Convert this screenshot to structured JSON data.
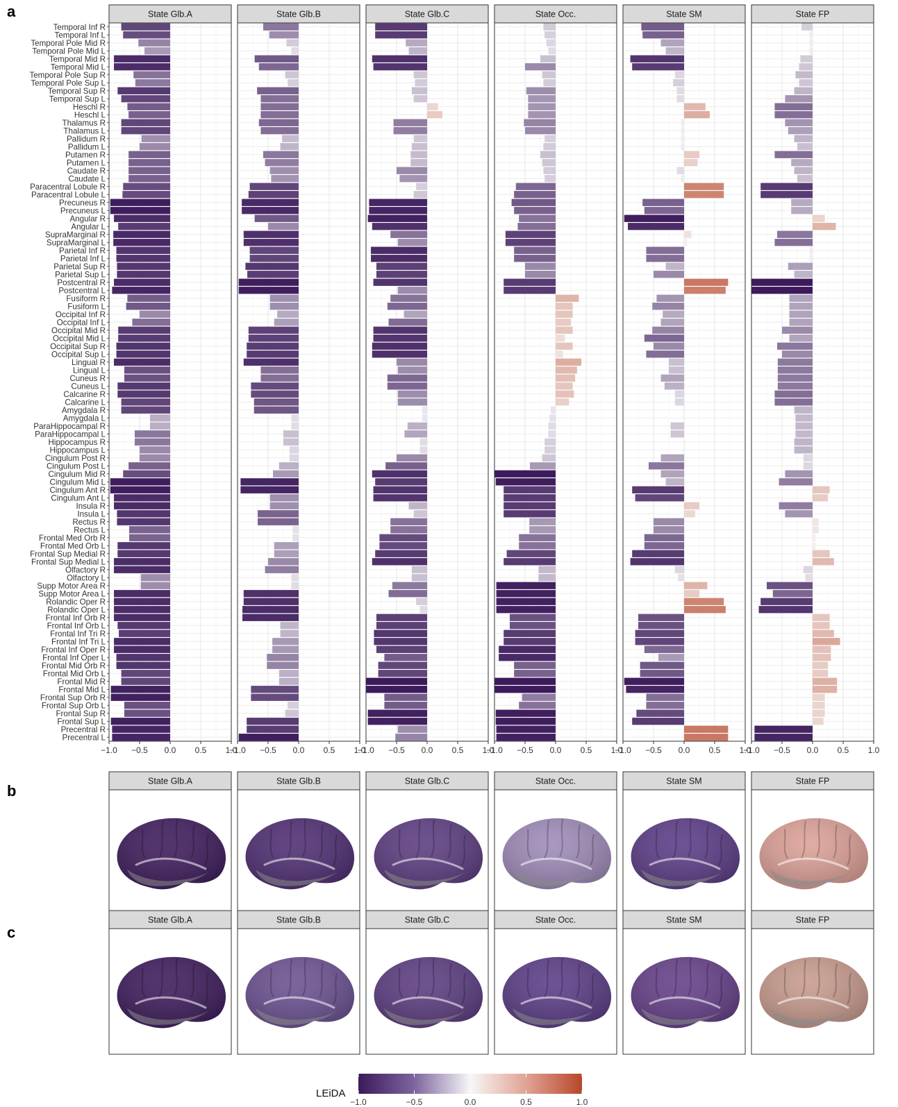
{
  "panel_labels": {
    "a": "a",
    "b": "b",
    "c": "c"
  },
  "brain_panels": {
    "b": {
      "colors": [
        "#3c1a5b",
        "#4e2c72",
        "#5b3b80",
        "#9e8ab8",
        "#5a3b86",
        "#dca096"
      ]
    },
    "c": {
      "colors": [
        "#3c1a5b",
        "#6a5091",
        "#5b3b80",
        "#5a3b86",
        "#643e88",
        "#c89a8d"
      ]
    }
  },
  "legend": {
    "title": "LEiDA",
    "ticks": [
      "−1.0",
      "−0.5",
      "0.0",
      "0.5",
      "1.0"
    ],
    "tick_values": [
      -1,
      -0.5,
      0,
      0.5,
      1
    ],
    "colors": {
      "low": "#3c1a5b",
      "mid": "#f7f7f7",
      "high": "#b7472a"
    }
  },
  "chart_data": {
    "type": "bar",
    "orientation": "horizontal",
    "xlim": [
      -1,
      1
    ],
    "x_ticks": [
      "−1.0",
      "−0.5",
      "0.0",
      "0.5",
      "1.0"
    ],
    "x_tick_values": [
      -1,
      -0.5,
      0,
      0.5,
      1
    ],
    "grid": true,
    "categories": [
      "Temporal Inf R",
      "Temporal Inf L",
      "Temporal Pole Mid R",
      "Temporal Pole Mid L",
      "Temporal Mid R",
      "Temporal Mid L",
      "Temporal Pole Sup R",
      "Temporal Pole Sup L",
      "Temporal Sup R",
      "Temporal Sup L",
      "Heschl R",
      "Heschl L",
      "Thalamus R",
      "Thalamus L",
      "Pallidum R",
      "Pallidum L",
      "Putamen R",
      "Putamen L",
      "Caudate R",
      "Caudate L",
      "Paracentral Lobule R",
      "Paracentral Lobule L",
      "Precuneus R",
      "Precuneus L",
      "Angular R",
      "Angular L",
      "SupraMarginal R",
      "SupraMarginal L",
      "Parietal Inf R",
      "Parietal Inf L",
      "Parietal Sup R",
      "Parietal Sup L",
      "Postcentral R",
      "Postcentral L",
      "Fusiform R",
      "Fusiform L",
      "Occipital Inf R",
      "Occipital Inf L",
      "Occipital Mid R",
      "Occipital Mid L",
      "Occipital Sup R",
      "Occipital Sup L",
      "Lingual R",
      "Lingual L",
      "Cuneus R",
      "Cuneus L",
      "Calcarine R",
      "Calcarine L",
      "Amygdala R",
      "Amygdala L",
      "ParaHippocampal R",
      "ParaHippocampal L",
      "Hippocampus R",
      "Hippocampus L",
      "Cingulum Post R",
      "Cingulum Post L",
      "Cingulum Mid R",
      "Cingulum Mid L",
      "Cingulum Ant R",
      "Cingulum Ant L",
      "Insula R",
      "Insula L",
      "Rectus R",
      "Rectus L",
      "Frontal Med Orb R",
      "Frontal Med Orb L",
      "Frontal Sup Medial R",
      "Frontal Sup Medial L",
      "Olfactory R",
      "Olfactory L",
      "Supp Motor Area R",
      "Supp Motor Area L",
      "Rolandic Oper R",
      "Rolandic Oper L",
      "Frontal Inf Orb R",
      "Frontal Inf Orb L",
      "Frontal Inf Tri R",
      "Frontal Inf Tri L",
      "Frontal Inf Oper R",
      "Frontal Inf Oper L",
      "Frontal Mid Orb R",
      "Frontal Mid Orb L",
      "Frontal Mid R",
      "Frontal Mid L",
      "Frontal Sup Orb R",
      "Frontal Sup Orb L",
      "Frontal Sup R",
      "Frontal Sup L",
      "Precentral R",
      "Precentral L"
    ],
    "series": [
      {
        "name": "State Glb.A",
        "values": [
          -0.8,
          -0.77,
          -0.52,
          -0.42,
          -0.92,
          -0.92,
          -0.6,
          -0.57,
          -0.86,
          -0.8,
          -0.7,
          -0.68,
          -0.8,
          -0.8,
          -0.47,
          -0.5,
          -0.68,
          -0.68,
          -0.68,
          -0.68,
          -0.77,
          -0.78,
          -0.98,
          -0.98,
          -0.92,
          -0.85,
          -0.93,
          -0.93,
          -0.88,
          -0.88,
          -0.87,
          -0.87,
          -0.92,
          -0.95,
          -0.7,
          -0.72,
          -0.5,
          -0.62,
          -0.85,
          -0.85,
          -0.88,
          -0.88,
          -0.92,
          -0.75,
          -0.75,
          -0.86,
          -0.86,
          -0.8,
          -0.8,
          -0.33,
          -0.33,
          -0.58,
          -0.58,
          -0.5,
          -0.5,
          -0.68,
          -0.77,
          -0.98,
          -0.98,
          -0.92,
          -0.92,
          -0.87,
          -0.87,
          -0.67,
          -0.67,
          -0.86,
          -0.86,
          -0.92,
          -0.92,
          -0.48,
          -0.48,
          -0.92,
          -0.92,
          -0.92,
          -0.92,
          -0.86,
          -0.84,
          -0.92,
          -0.92,
          -0.88,
          -0.88,
          -0.8,
          -0.8,
          -0.97,
          -0.97,
          -0.75,
          -0.75,
          -0.97,
          -0.95,
          -0.95
        ]
      },
      {
        "name": "State Glb.B",
        "values": [
          -0.58,
          -0.48,
          -0.2,
          -0.12,
          -0.72,
          -0.65,
          -0.22,
          -0.18,
          -0.68,
          -0.62,
          -0.62,
          -0.62,
          -0.65,
          -0.62,
          -0.27,
          -0.3,
          -0.58,
          -0.55,
          -0.47,
          -0.45,
          -0.8,
          -0.82,
          -0.93,
          -0.93,
          -0.72,
          -0.5,
          -0.9,
          -0.9,
          -0.8,
          -0.8,
          -0.87,
          -0.84,
          -0.98,
          -0.98,
          -0.47,
          -0.47,
          -0.35,
          -0.4,
          -0.82,
          -0.82,
          -0.85,
          -0.85,
          -0.9,
          -0.62,
          -0.62,
          -0.78,
          -0.78,
          -0.73,
          -0.73,
          -0.12,
          -0.12,
          -0.25,
          -0.25,
          -0.15,
          -0.15,
          -0.32,
          -0.42,
          -0.95,
          -0.95,
          -0.47,
          -0.47,
          -0.67,
          -0.67,
          -0.1,
          -0.1,
          -0.4,
          -0.4,
          -0.5,
          -0.55,
          -0.12,
          -0.12,
          -0.9,
          -0.9,
          -0.92,
          -0.92,
          -0.3,
          -0.3,
          -0.43,
          -0.43,
          -0.52,
          -0.52,
          -0.32,
          -0.32,
          -0.78,
          -0.78,
          -0.18,
          -0.22,
          -0.85,
          -0.85,
          -0.98
        ]
      },
      {
        "name": "State Glb.C",
        "values": [
          -0.85,
          -0.85,
          -0.35,
          -0.3,
          -0.9,
          -0.88,
          -0.22,
          -0.2,
          -0.25,
          -0.22,
          0.18,
          0.25,
          -0.55,
          -0.55,
          -0.22,
          -0.25,
          -0.27,
          -0.27,
          -0.5,
          -0.45,
          -0.18,
          -0.22,
          -0.95,
          -0.95,
          -0.97,
          -0.9,
          -0.6,
          -0.48,
          -0.92,
          -0.92,
          -0.83,
          -0.83,
          -0.88,
          -0.48,
          -0.6,
          -0.65,
          -0.38,
          -0.63,
          -0.88,
          -0.88,
          -0.9,
          -0.9,
          -0.5,
          -0.48,
          -0.65,
          -0.65,
          -0.48,
          -0.48,
          -0.08,
          -0.08,
          -0.32,
          -0.37,
          -0.12,
          -0.12,
          -0.5,
          -0.68,
          -0.9,
          -0.85,
          -0.88,
          -0.88,
          -0.3,
          -0.22,
          -0.6,
          -0.6,
          -0.78,
          -0.78,
          -0.85,
          -0.9,
          -0.25,
          -0.25,
          -0.57,
          -0.63,
          -0.18,
          -0.12,
          -0.83,
          -0.83,
          -0.87,
          -0.87,
          -0.83,
          -0.7,
          -0.8,
          -0.8,
          -1.0,
          -1.0,
          -0.7,
          -0.7,
          -0.97,
          -0.97,
          -0.48,
          -0.52
        ]
      },
      {
        "name": "State Occ.",
        "values": [
          -0.2,
          -0.18,
          -0.15,
          -0.12,
          -0.25,
          -0.5,
          -0.22,
          -0.2,
          -0.48,
          -0.45,
          -0.45,
          -0.45,
          -0.52,
          -0.5,
          -0.18,
          -0.2,
          -0.25,
          -0.22,
          -0.2,
          -0.18,
          -0.65,
          -0.68,
          -0.72,
          -0.68,
          -0.6,
          -0.62,
          -0.82,
          -0.82,
          -0.68,
          -0.68,
          -0.5,
          -0.5,
          -0.85,
          -0.85,
          0.38,
          0.28,
          0.28,
          0.25,
          0.28,
          0.15,
          0.28,
          0.12,
          0.42,
          0.35,
          0.32,
          0.28,
          0.3,
          0.22,
          -0.08,
          -0.1,
          -0.12,
          -0.12,
          -0.18,
          -0.18,
          -0.22,
          -0.42,
          -1.0,
          -0.98,
          -0.85,
          -0.85,
          -0.85,
          -0.85,
          -0.43,
          -0.43,
          -0.6,
          -0.6,
          -0.8,
          -0.85,
          -0.28,
          -0.28,
          -0.97,
          -0.97,
          -0.97,
          -0.97,
          -0.75,
          -0.75,
          -0.85,
          -0.85,
          -0.93,
          -0.93,
          -0.68,
          -0.68,
          -1.0,
          -1.0,
          -0.55,
          -0.6,
          -0.98,
          -0.98,
          -0.97,
          -0.97
        ]
      },
      {
        "name": "State SM",
        "values": [
          -0.7,
          -0.68,
          -0.38,
          -0.3,
          -0.88,
          -0.85,
          -0.15,
          -0.18,
          -0.12,
          -0.12,
          0.35,
          0.42,
          -0.05,
          -0.05,
          -0.05,
          -0.05,
          0.25,
          0.22,
          -0.12,
          -0.05,
          0.65,
          0.65,
          -0.68,
          -0.65,
          -0.98,
          -0.92,
          0.12,
          0.05,
          -0.62,
          -0.62,
          -0.3,
          -0.5,
          0.72,
          0.68,
          -0.45,
          -0.52,
          -0.35,
          -0.38,
          -0.52,
          -0.65,
          -0.5,
          -0.62,
          -0.25,
          -0.25,
          -0.38,
          -0.32,
          -0.15,
          -0.15,
          0.02,
          -0.02,
          -0.22,
          -0.22,
          0.02,
          0.02,
          -0.38,
          -0.58,
          -0.38,
          -0.3,
          -0.85,
          -0.8,
          0.25,
          0.18,
          -0.5,
          -0.5,
          -0.65,
          -0.65,
          -0.85,
          -0.88,
          -0.15,
          -0.1,
          0.38,
          0.25,
          0.65,
          0.68,
          -0.75,
          -0.75,
          -0.8,
          -0.8,
          -0.65,
          -0.42,
          -0.72,
          -0.72,
          -0.98,
          -0.95,
          -0.62,
          -0.62,
          -0.78,
          -0.85,
          0.72,
          0.72
        ]
      },
      {
        "name": "State FP",
        "values": [
          -0.18,
          -0.05,
          -0.05,
          -0.05,
          -0.2,
          -0.22,
          -0.28,
          -0.22,
          -0.3,
          -0.45,
          -0.62,
          -0.62,
          -0.45,
          -0.4,
          -0.3,
          -0.25,
          -0.62,
          -0.35,
          -0.3,
          -0.25,
          -0.85,
          -0.85,
          -0.35,
          -0.35,
          0.2,
          0.38,
          -0.58,
          -0.62,
          -0.05,
          -0.05,
          -0.4,
          -0.3,
          -1.0,
          -1.0,
          -0.38,
          -0.38,
          -0.38,
          -0.38,
          -0.5,
          -0.38,
          -0.58,
          -0.5,
          -0.57,
          -0.57,
          -0.57,
          -0.57,
          -0.62,
          -0.62,
          -0.3,
          -0.28,
          -0.28,
          -0.28,
          -0.3,
          -0.3,
          -0.15,
          -0.15,
          -0.45,
          -0.55,
          0.28,
          0.25,
          -0.55,
          -0.45,
          0.1,
          0.1,
          0.05,
          0.05,
          0.28,
          0.35,
          -0.15,
          -0.12,
          -0.75,
          -0.65,
          -0.85,
          -0.88,
          0.28,
          0.28,
          0.35,
          0.45,
          0.3,
          0.3,
          0.25,
          0.25,
          0.4,
          0.4,
          0.2,
          0.2,
          0.2,
          0.18,
          -0.95,
          -0.95
        ]
      }
    ]
  }
}
